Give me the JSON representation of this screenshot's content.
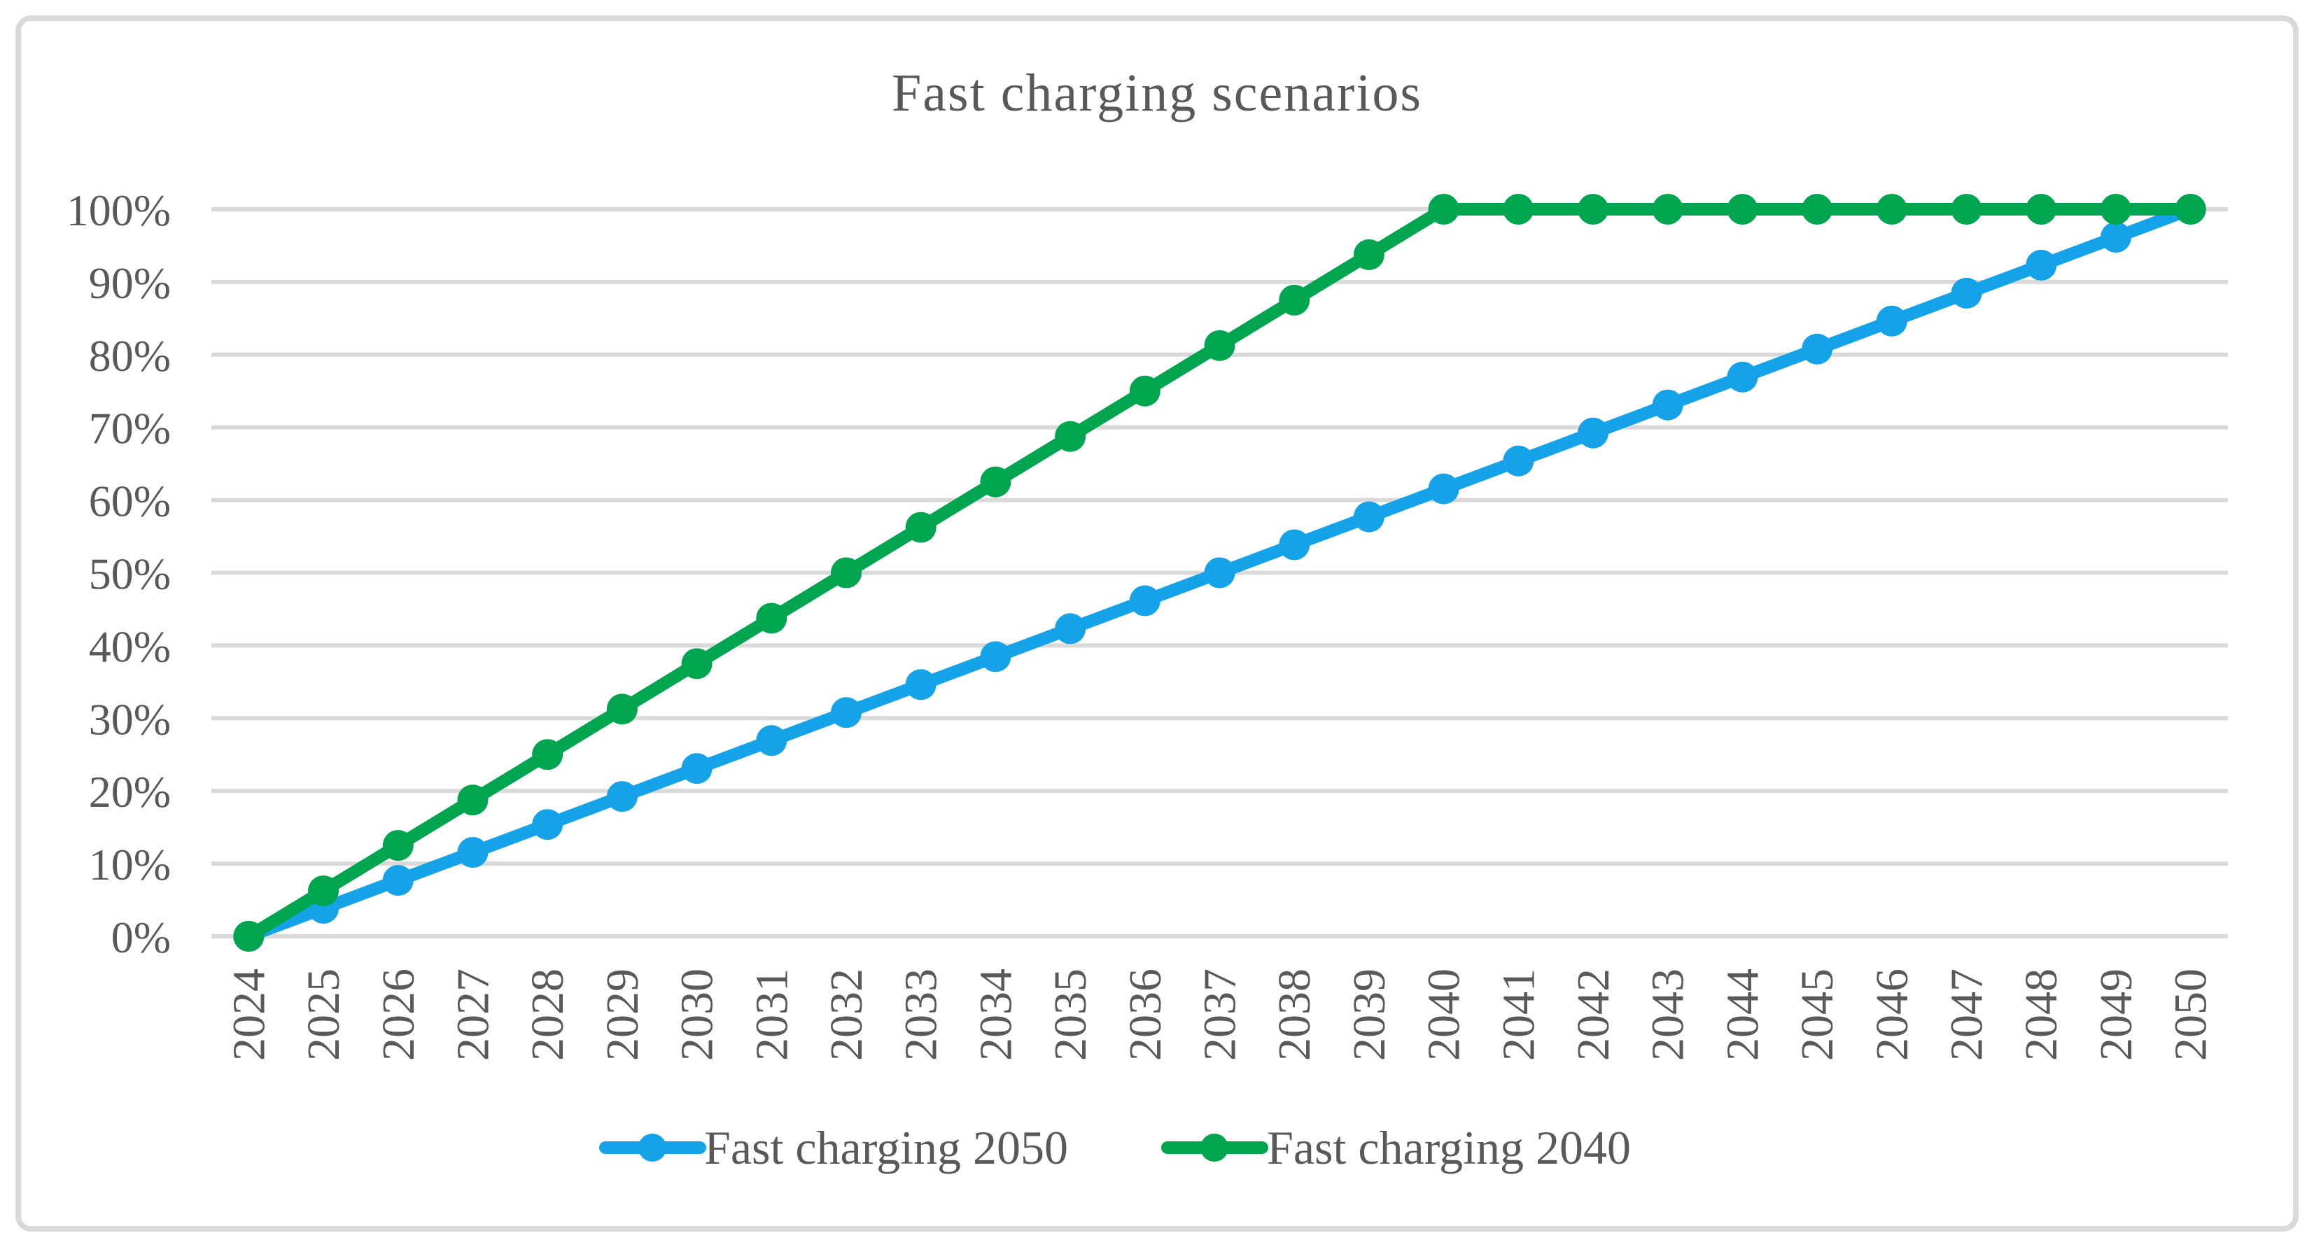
{
  "figure": {
    "title": "Fast charging scenarios"
  },
  "chart_data": {
    "type": "line",
    "title": "Fast charging scenarios",
    "xlabel": "",
    "ylabel": "",
    "ylim": [
      0,
      100
    ],
    "grid": true,
    "legend_position": "bottom",
    "y_tick_labels": [
      "0%",
      "10%",
      "20%",
      "30%",
      "40%",
      "50%",
      "60%",
      "70%",
      "80%",
      "90%",
      "100%"
    ],
    "categories": [
      "2024",
      "2025",
      "2026",
      "2027",
      "2028",
      "2029",
      "2030",
      "2031",
      "2032",
      "2033",
      "2034",
      "2035",
      "2036",
      "2037",
      "2038",
      "2039",
      "2040",
      "2041",
      "2042",
      "2043",
      "2044",
      "2045",
      "2046",
      "2047",
      "2048",
      "2049",
      "2050"
    ],
    "series": [
      {
        "name": "Fast charging 2050",
        "color": "#14A3E8",
        "values": [
          0,
          3.85,
          7.69,
          11.54,
          15.38,
          19.23,
          23.08,
          26.92,
          30.77,
          34.62,
          38.46,
          42.31,
          46.15,
          50,
          53.85,
          57.69,
          61.54,
          65.38,
          69.23,
          73.08,
          76.92,
          80.77,
          84.62,
          88.46,
          92.31,
          96.15,
          100
        ]
      },
      {
        "name": "Fast charging 2040",
        "color": "#00A550",
        "values": [
          0,
          6.25,
          12.5,
          18.75,
          25,
          31.25,
          37.5,
          43.75,
          50,
          56.25,
          62.5,
          68.75,
          75,
          81.25,
          87.5,
          93.75,
          100,
          100,
          100,
          100,
          100,
          100,
          100,
          100,
          100,
          100,
          100
        ]
      }
    ],
    "colors": {
      "grid": "#D9D9D9",
      "border": "#D9D9D9",
      "text": "#595959",
      "background": "#FFFFFF"
    }
  }
}
